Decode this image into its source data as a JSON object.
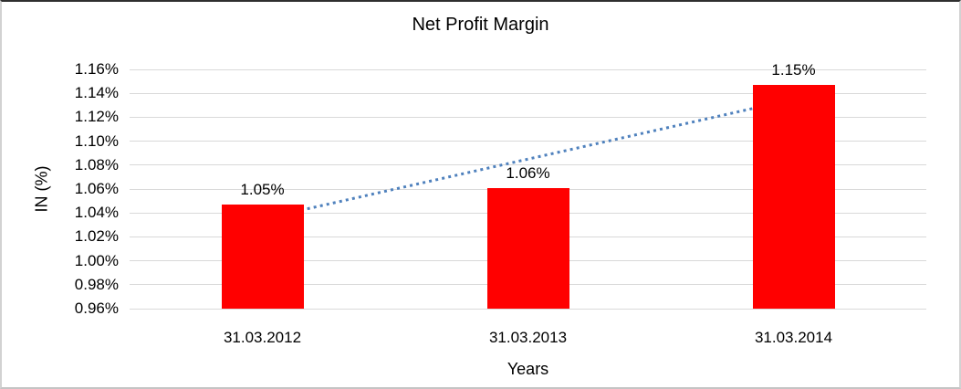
{
  "chart_data": {
    "type": "bar",
    "title": "Net Profit Margin",
    "xlabel": "Years",
    "ylabel": "IN (%)",
    "categories": [
      "31.03.2012",
      "31.03.2013",
      "31.03.2014"
    ],
    "series": [
      {
        "name": "Net Profit Margin",
        "values": [
          1.047,
          1.061,
          1.147
        ],
        "data_labels": [
          "1.05%",
          "1.06%",
          "1.15%"
        ],
        "color": "#ff0000"
      }
    ],
    "trendline": {
      "style": "dotted",
      "color": "#4f81bd",
      "start_value": 1.035,
      "end_value": 1.135,
      "start_category_index": 0,
      "end_category_index": 2
    },
    "ylim": [
      0.96,
      1.16
    ],
    "ytick_step": 0.02,
    "ytick_labels": [
      "0.96%",
      "0.98%",
      "1.00%",
      "1.02%",
      "1.04%",
      "1.06%",
      "1.08%",
      "1.10%",
      "1.12%",
      "1.14%",
      "1.16%"
    ],
    "grid": true,
    "gridline_color": "#d9d9d9",
    "legend": false
  }
}
